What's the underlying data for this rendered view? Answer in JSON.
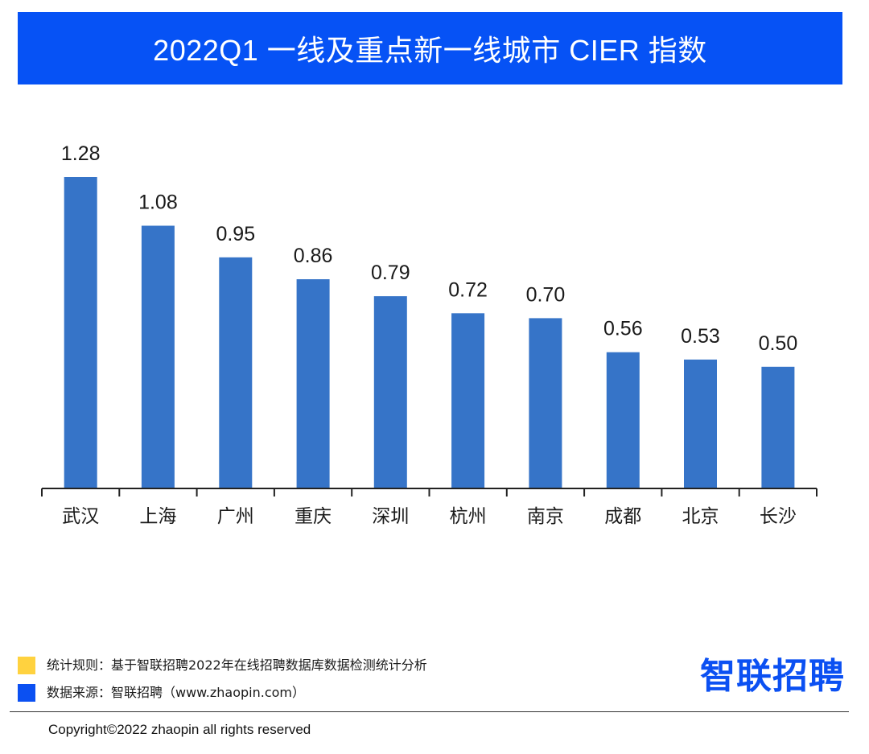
{
  "chart_data": {
    "type": "bar",
    "title": "2022Q1 一线及重点新一线城市 CIER 指数",
    "categories": [
      "武汉",
      "上海",
      "广州",
      "重庆",
      "深圳",
      "杭州",
      "南京",
      "成都",
      "北京",
      "长沙"
    ],
    "values": [
      1.28,
      1.08,
      0.95,
      0.86,
      0.79,
      0.72,
      0.7,
      0.56,
      0.53,
      0.5
    ],
    "data_labels": [
      "1.28",
      "1.08",
      "0.95",
      "0.86",
      "0.79",
      "0.72",
      "0.70",
      "0.56",
      "0.53",
      "0.50"
    ],
    "xlabel": "",
    "ylabel": "",
    "grid": false,
    "legend": "none"
  },
  "footer": {
    "notes": [
      {
        "text": "统计规则：基于智联招聘2022年在线招聘数据库数据检测统计分析",
        "marker_color": "#FFD23F"
      },
      {
        "text": "数据来源：智联招聘（www.zhaopin.com）",
        "marker_color": "#0B50F2"
      }
    ],
    "logo_text": "智联招聘",
    "copyright": "Copyright©2022 zhaopin all rights reserved"
  },
  "colors": {
    "header_bg": "#0652F5",
    "header_text": "#FFFFFF",
    "bar": "#3674C8",
    "axis": "#222222",
    "logo": "#0B50F2"
  }
}
